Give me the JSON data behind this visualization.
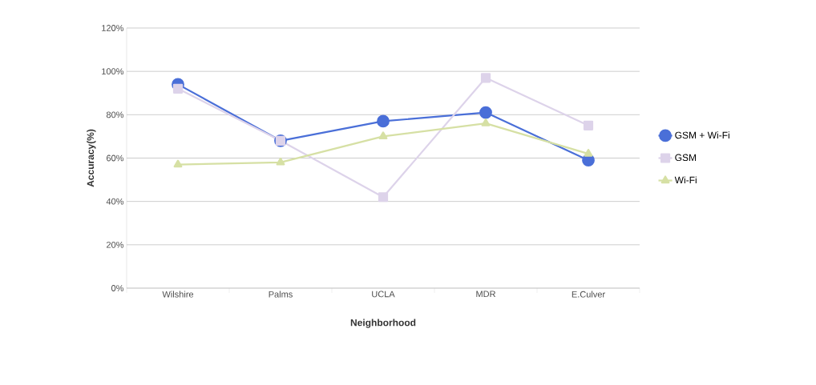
{
  "chart_data": {
    "type": "line",
    "xlabel": "Neighborhood",
    "ylabel": "Accuracy(%)",
    "categories": [
      "Wilshire",
      "Palms",
      "UCLA",
      "MDR",
      "E.Culver"
    ],
    "series": [
      {
        "name": "GSM + Wi-Fi",
        "color": "#4a6fd8",
        "marker": "circle",
        "values": [
          94,
          68,
          77,
          81,
          59
        ]
      },
      {
        "name": "GSM",
        "color": "#ddd3ea",
        "marker": "square",
        "values": [
          92,
          68,
          42,
          97,
          75
        ]
      },
      {
        "name": "Wi-Fi",
        "color": "#d6e0a4",
        "marker": "triangle",
        "values": [
          57,
          58,
          70,
          76,
          62
        ]
      }
    ],
    "ylim": [
      0,
      120
    ],
    "yticks": [
      {
        "value": 0,
        "label": "0%"
      },
      {
        "value": 20,
        "label": "20%"
      },
      {
        "value": 40,
        "label": "40%"
      },
      {
        "value": 60,
        "label": "60%"
      },
      {
        "value": 80,
        "label": "80%"
      },
      {
        "value": 100,
        "label": "100%"
      },
      {
        "value": 120,
        "label": "120%"
      }
    ],
    "grid": "y",
    "legend": "right"
  }
}
